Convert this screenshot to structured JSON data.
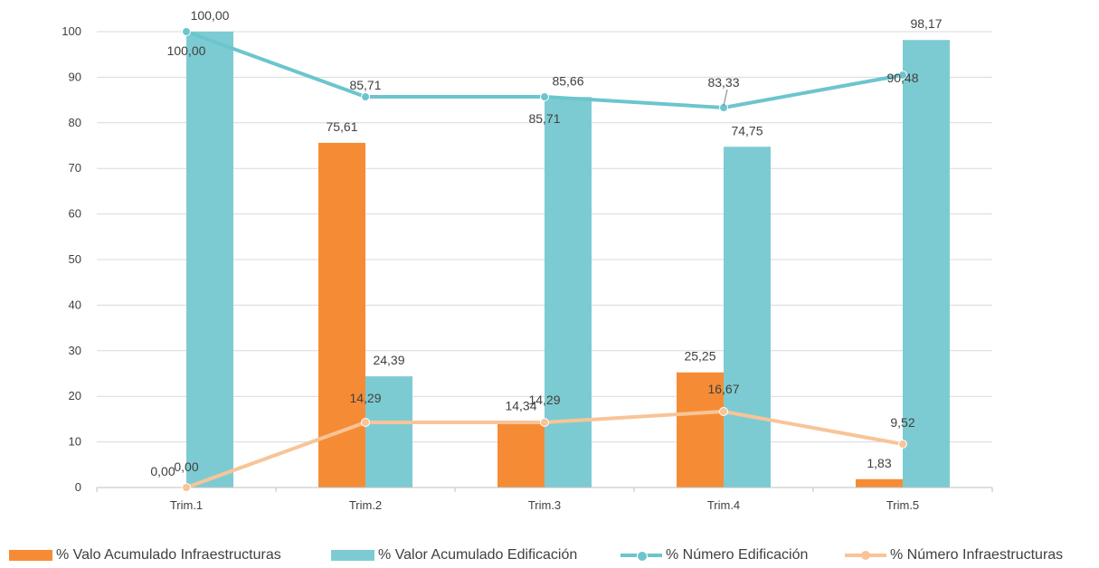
{
  "chart_data": {
    "type": "bar",
    "categories": [
      "Trim.1",
      "Trim.2",
      "Trim.3",
      "Trim.4",
      "Trim.5"
    ],
    "ylim": [
      0,
      100
    ],
    "yticks": [
      0,
      10,
      20,
      30,
      40,
      50,
      60,
      70,
      80,
      90,
      100
    ],
    "title": "",
    "xlabel": "",
    "ylabel": "",
    "grid": "horizontal",
    "legend_position": "bottom",
    "series": [
      {
        "name": "% Valo Acumulado Infraestructuras",
        "kind": "bar",
        "color": "#F58C35",
        "values": [
          0.0,
          75.61,
          14.34,
          25.25,
          1.83
        ],
        "labels": [
          "0,00",
          "75,61",
          "14,34",
          "25,25",
          "1,83"
        ]
      },
      {
        "name": "% Valor Acumulado Edificación",
        "kind": "bar",
        "color": "#7DCBD2",
        "values": [
          100.0,
          24.39,
          85.66,
          74.75,
          98.17
        ],
        "labels": [
          "100,00",
          "24,39",
          "85,66",
          "74,75",
          "98,17"
        ]
      },
      {
        "name": "% Número Edificación",
        "kind": "line",
        "color": "#6CC5CE",
        "values": [
          100.0,
          85.71,
          85.71,
          83.33,
          90.48
        ],
        "labels": [
          "100,00",
          "85,71",
          "85,71",
          "83,33",
          "90,48"
        ]
      },
      {
        "name": "% Número Infraestructuras",
        "kind": "line",
        "color": "#F8C498",
        "values": [
          0.0,
          14.29,
          14.29,
          16.67,
          9.52
        ],
        "labels": [
          "0,00",
          "14,29",
          "14,29",
          "16,67",
          "9,52"
        ]
      }
    ]
  }
}
